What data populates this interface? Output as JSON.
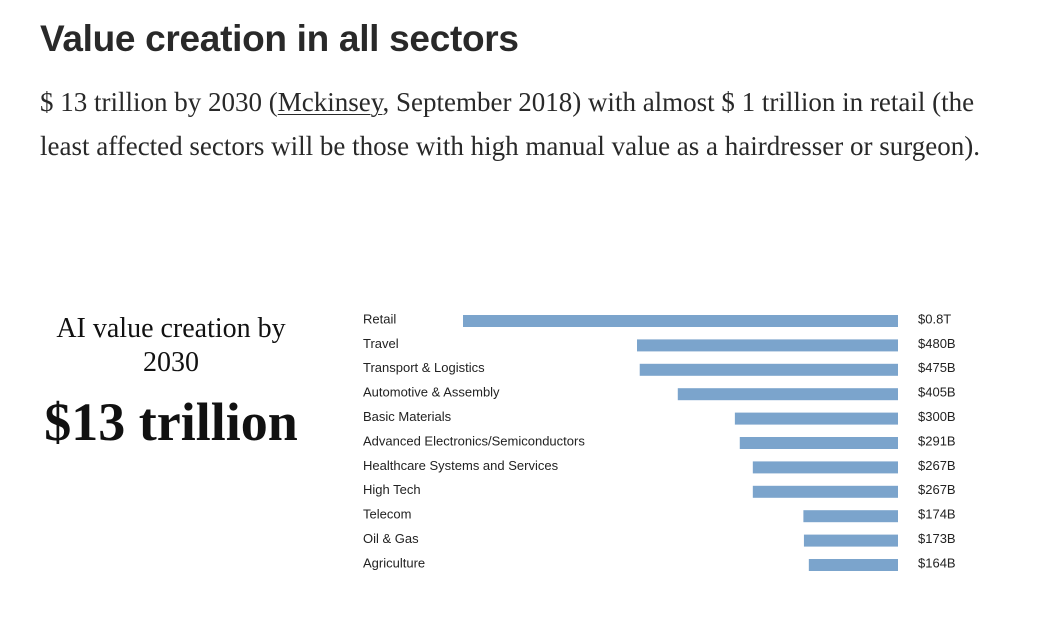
{
  "heading": "Value creation in all sectors",
  "paragraph": {
    "before_link": "$ 13 trillion by 2030 (",
    "link": "Mckinsey",
    "after_link": ", September 2018) with almost $ 1 trillion in retail (the least affected sectors will be those with high manual value as a hairdresser or surgeon)."
  },
  "ai_panel": {
    "caption": "AI value creation by 2030",
    "amount": "$13 trillion"
  },
  "chart_data": {
    "type": "bar",
    "orientation": "horizontal",
    "title": "",
    "xlabel": "",
    "ylabel": "",
    "units": "billion USD",
    "categories": [
      "Retail",
      "Travel",
      "Transport & Logistics",
      "Automotive & Assembly",
      "Basic Materials",
      "Advanced Electronics/Semiconductors",
      "Healthcare Systems and Services",
      "High Tech",
      "Telecom",
      "Oil & Gas",
      "Agriculture"
    ],
    "values": [
      800,
      480,
      475,
      405,
      300,
      291,
      267,
      267,
      174,
      173,
      164
    ],
    "value_labels": [
      "$0.8T",
      "$480B",
      "$475B",
      "$405B",
      "$300B",
      "$291B",
      "$267B",
      "$267B",
      "$174B",
      "$173B",
      "$164B"
    ],
    "bar_alignment": "right",
    "color": "#7ba4cc",
    "grid": false,
    "legend": "none"
  }
}
